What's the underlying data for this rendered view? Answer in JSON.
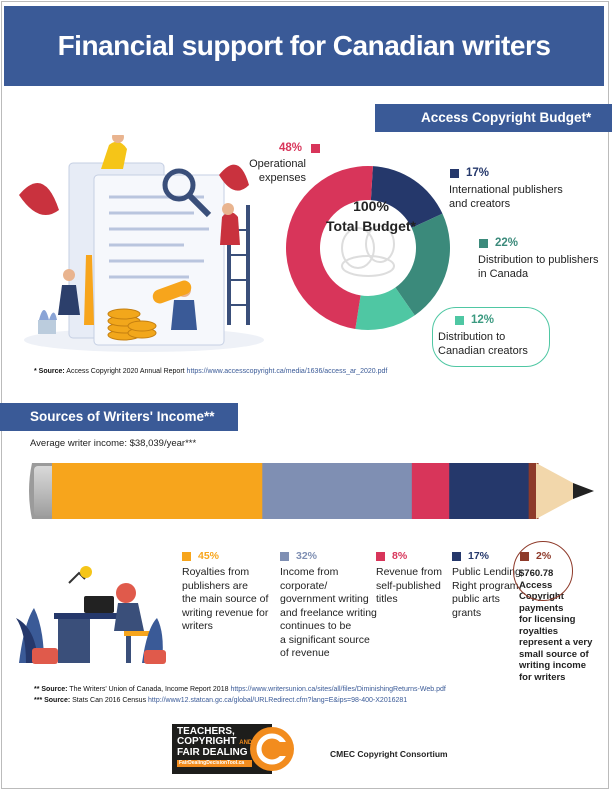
{
  "title": "Financial support for Canadian writers",
  "budget": {
    "heading": "Access Copyright Budget*",
    "center_line1": "100%",
    "center_line2": "Total Budget*",
    "slices": [
      {
        "pct": "48%",
        "value": 48,
        "label1": "Operational",
        "label2": "expenses",
        "color": "#d8355a"
      },
      {
        "pct": "17%",
        "value": 17,
        "label1": "International publishers",
        "label2": "and creators",
        "color": "#25386b"
      },
      {
        "pct": "22%",
        "value": 22,
        "label1": "Distribution to publishers",
        "label2": "in Canada",
        "color": "#3b8a7b"
      },
      {
        "pct": "12%",
        "value": 12,
        "label1": "Distribution to",
        "label2": "Canadian creators",
        "color": "#4fc7a3"
      }
    ],
    "source_bold": "* Source:",
    "source_text": "Access Copyright 2020 Annual Report",
    "source_url": "https://www.accesscopyright.ca/media/1636/access_ar_2020.pdf"
  },
  "income": {
    "heading": "Sources of Writers' Income**",
    "average": "Average writer income: $38,039/year***",
    "segments": [
      {
        "pct": "45%",
        "value": 45,
        "color": "#f7a51c",
        "lines": [
          "Royalties from",
          "publishers are",
          "the main source of",
          "writing revenue for",
          "writers"
        ]
      },
      {
        "pct": "32%",
        "value": 32,
        "color": "#7f8fb3",
        "lines": [
          "Income from",
          "corporate/",
          "government writing",
          "and freelance writing",
          "continues to be",
          "a significant source",
          "of revenue"
        ]
      },
      {
        "pct": "8%",
        "value": 8,
        "color": "#d8355a",
        "lines": [
          "Revenue from",
          "self-published",
          "titles"
        ]
      },
      {
        "pct": "17%",
        "value": 17,
        "color": "#25386b",
        "lines": [
          "Public Lending",
          "Right program,",
          "public arts",
          "grants"
        ]
      },
      {
        "pct": "2%",
        "value": 2,
        "color": "#8e3a2a",
        "lines": [
          "$760.78",
          "Access",
          "Copyright",
          "payments",
          "for licensing",
          "royalties",
          "represent a very",
          "small source of",
          "writing income",
          "for writers"
        ]
      }
    ]
  },
  "sources": [
    {
      "bold": "** Source:",
      "text": "The Writers' Union of Canada, Income Report 2018",
      "url": "https://www.writersunion.ca/sites/all/files/DiminishingReturns-Web.pdf"
    },
    {
      "bold": "*** Source:",
      "text": "Stats Can 2016 Census",
      "url": "http://www12.statcan.gc.ca/global/URLRedirect.cfm?lang=E&ips=98-400-X2016281"
    }
  ],
  "logo": {
    "line1": "TEACHERS,",
    "line2": "COPYRIGHT",
    "line2b": "AND",
    "line3": "FAIR DEALING",
    "sub": "FairDealingDecisionTool.ca"
  },
  "consortium": "CMEC Copyright Consortium",
  "colors": {
    "primary": "#3a5a97",
    "orange": "#f7a51c"
  }
}
